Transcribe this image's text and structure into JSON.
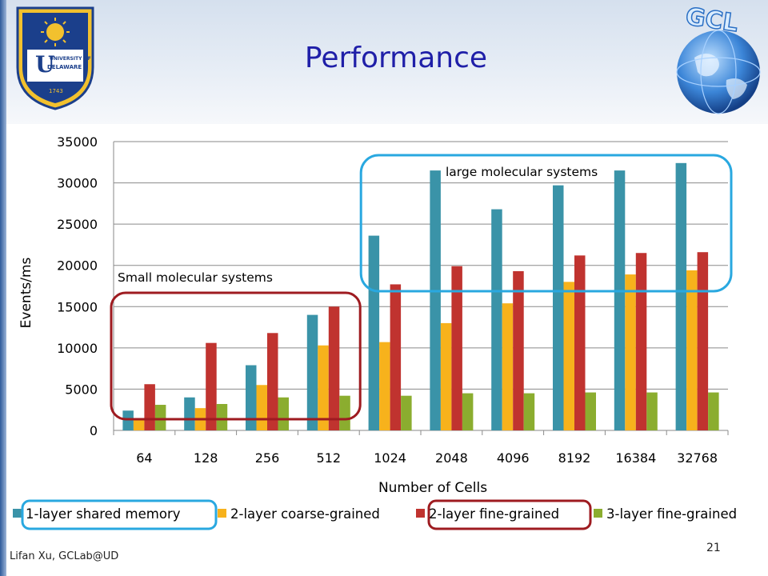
{
  "slide": {
    "title": "Performance",
    "footer": "Lifan Xu, GCLab@UD",
    "page_number": "21"
  },
  "logos": {
    "left": {
      "name": "university-of-delaware-seal",
      "text_lines": [
        "UNIVERSITY OF",
        "DELAWARE",
        "1743"
      ],
      "color": "#1b3f8b",
      "accent": "#f2c12e"
    },
    "right": {
      "name": "gcl-globe-logo",
      "text": "GCL",
      "color": "#2a6fc4"
    }
  },
  "annotations": {
    "small": {
      "label": "Small molecular systems",
      "color": "#9e1b20",
      "group_range": [
        0,
        3
      ]
    },
    "large": {
      "label": "large molecular systems",
      "color": "#29a8e0",
      "group_range": [
        4,
        9
      ]
    }
  },
  "legend_highlights": {
    "first": "#29a8e0",
    "third": "#9e1b20"
  },
  "chart_data": {
    "type": "bar",
    "title": "",
    "xlabel": "Number of Cells",
    "ylabel": "Events/ms",
    "ylim": [
      0,
      35000
    ],
    "yticks": [
      0,
      5000,
      10000,
      15000,
      20000,
      25000,
      30000,
      35000
    ],
    "grid": true,
    "legend_position": "bottom",
    "categories": [
      "64",
      "128",
      "256",
      "512",
      "1024",
      "2048",
      "4096",
      "8192",
      "16384",
      "32768"
    ],
    "series": [
      {
        "name": "1-layer shared memory",
        "color": "#3a93a8",
        "values": [
          2400,
          4000,
          7900,
          14000,
          23600,
          31500,
          26800,
          29700,
          31500,
          32400
        ]
      },
      {
        "name": "2-layer coarse-grained",
        "color": "#f7b21c",
        "values": [
          1300,
          2700,
          5500,
          10300,
          10700,
          13000,
          15400,
          18000,
          18900,
          19400
        ]
      },
      {
        "name": "2-layer fine-grained",
        "color": "#c0332f",
        "values": [
          5600,
          10600,
          11800,
          15000,
          17700,
          19900,
          19300,
          21200,
          21500,
          21600
        ]
      },
      {
        "name": "3-layer fine-grained",
        "color": "#8bad2f",
        "values": [
          3100,
          3200,
          4000,
          4200,
          4200,
          4500,
          4500,
          4600,
          4600,
          4600
        ]
      }
    ]
  }
}
